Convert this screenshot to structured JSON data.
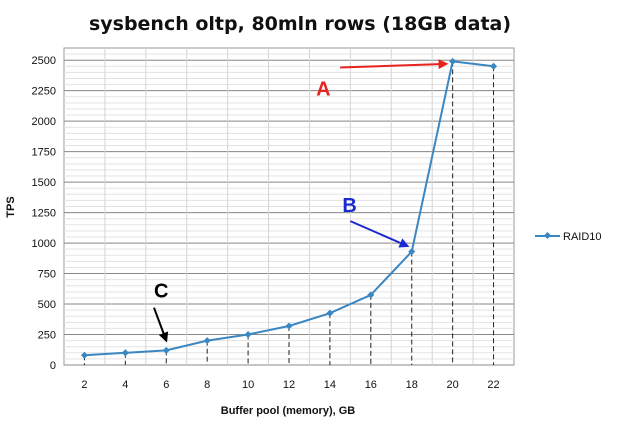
{
  "chart_data": {
    "type": "line",
    "title": "sysbench oltp, 80mln rows (18GB data)",
    "xlabel": "Buffer pool (memory), GB",
    "ylabel": "TPS",
    "x": [
      2,
      4,
      6,
      8,
      10,
      12,
      14,
      16,
      18,
      20,
      22
    ],
    "xlim": [
      1,
      23
    ],
    "ylim": [
      0,
      2600
    ],
    "yticks": [
      0,
      250,
      500,
      750,
      1000,
      1250,
      1500,
      1750,
      2000,
      2250,
      2500
    ],
    "grid": true,
    "legend_position": "right",
    "series": [
      {
        "name": "RAID10",
        "color": "#3a87c2",
        "values": [
          80,
          100,
          120,
          200,
          250,
          320,
          425,
          575,
          930,
          2490,
          2450
        ]
      }
    ],
    "annotations": [
      {
        "label": "A",
        "color": "#e8231e",
        "x_from": 14.5,
        "y_from": 2440,
        "x_to": 19.7,
        "y_to": 2470
      },
      {
        "label": "B",
        "color": "#1c2bd0",
        "x_from": 15.0,
        "y_from": 1180,
        "x_to": 17.8,
        "y_to": 975
      },
      {
        "label": "C",
        "color": "#000000",
        "x_from": 5.4,
        "y_from": 470,
        "x_to": 6.0,
        "y_to": 200
      }
    ]
  }
}
